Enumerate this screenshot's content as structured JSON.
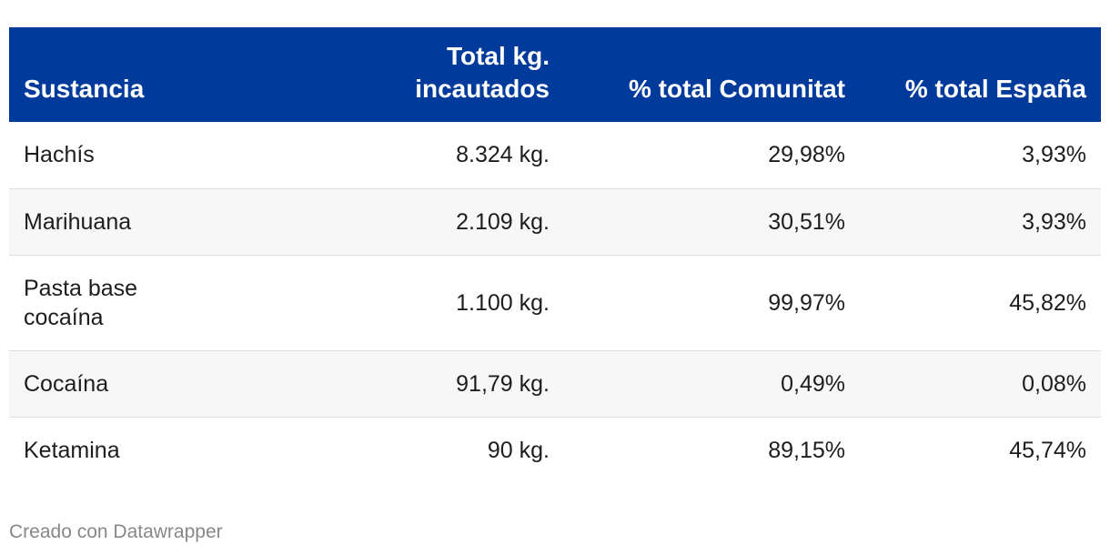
{
  "chart_data": {
    "type": "table",
    "columns": [
      "Sustancia",
      "Total kg. incautados",
      "% total Comunitat",
      "% total España"
    ],
    "header_lines": {
      "col2": [
        "Total kg.",
        "incautados"
      ]
    },
    "rows": [
      {
        "sustancia": "Hachís",
        "total": "8.324 kg.",
        "comunitat": "29,98%",
        "espana": "3,93%"
      },
      {
        "sustancia": "Marihuana",
        "total": "2.109 kg.",
        "comunitat": "30,51%",
        "espana": "3,93%"
      },
      {
        "sustancia_lines": [
          "Pasta base",
          "cocaína"
        ],
        "total": "1.100 kg.",
        "comunitat": "99,97%",
        "espana": "45,82%"
      },
      {
        "sustancia": "Cocaína",
        "total": "91,79 kg.",
        "comunitat": "0,49%",
        "espana": "0,08%"
      },
      {
        "sustancia": "Ketamina",
        "total": "90 kg.",
        "comunitat": "89,15%",
        "espana": "45,74%"
      }
    ]
  },
  "footer": {
    "credit": "Creado con Datawrapper"
  },
  "colors": {
    "header_bg": "#003a9b",
    "header_text": "#ffffff",
    "row_alt_bg": "#f7f7f7",
    "footer_text": "#888888"
  }
}
